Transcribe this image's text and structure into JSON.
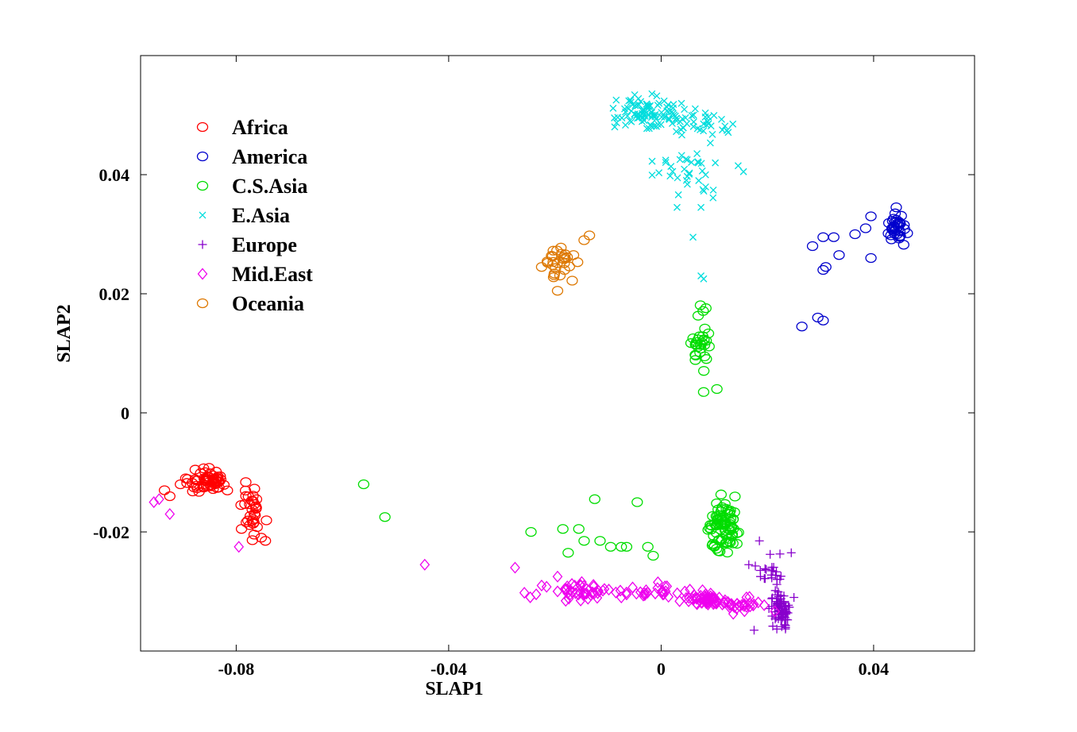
{
  "chart_data": {
    "type": "scatter",
    "title": "",
    "xlabel": "SLAP1",
    "ylabel": "SLAP2",
    "xlim": [
      -0.098,
      0.059
    ],
    "ylim": [
      -0.04,
      0.06
    ],
    "xticks": [
      {
        "value": -0.08,
        "label": "-0.08"
      },
      {
        "value": -0.04,
        "label": "-0.04"
      },
      {
        "value": 0,
        "label": "0"
      },
      {
        "value": 0.04,
        "label": "0.04"
      }
    ],
    "yticks": [
      {
        "value": -0.02,
        "label": "-0.02"
      },
      {
        "value": 0,
        "label": "0"
      },
      {
        "value": 0.02,
        "label": "0.02"
      },
      {
        "value": 0.04,
        "label": "0.04"
      }
    ],
    "grid": false,
    "legend_position": "top-left",
    "series": [
      {
        "name": "Africa",
        "marker": "circle",
        "color": "#ff0000",
        "clusters": [
          {
            "cx": -0.0855,
            "cy": -0.0115,
            "sx": 0.0025,
            "sy": 0.0012,
            "n": 60
          },
          {
            "cx": -0.077,
            "cy": -0.016,
            "sx": 0.0013,
            "sy": 0.0028,
            "n": 32
          }
        ],
        "points": [
          [
            -0.0935,
            -0.013
          ],
          [
            -0.0925,
            -0.014
          ],
          [
            -0.0905,
            -0.012
          ],
          [
            -0.0895,
            -0.011
          ],
          [
            -0.0745,
            -0.0215
          ],
          [
            -0.079,
            -0.0195
          ]
        ]
      },
      {
        "name": "America",
        "marker": "circle",
        "color": "#0000cc",
        "clusters": [
          {
            "cx": 0.0445,
            "cy": 0.031,
            "sx": 0.0012,
            "sy": 0.0017,
            "n": 35
          }
        ],
        "points": [
          [
            0.0395,
            0.026
          ],
          [
            0.0365,
            0.03
          ],
          [
            0.0385,
            0.031
          ],
          [
            0.0395,
            0.033
          ],
          [
            0.0285,
            0.028
          ],
          [
            0.0305,
            0.0295
          ],
          [
            0.0325,
            0.0295
          ],
          [
            0.0335,
            0.0265
          ],
          [
            0.0305,
            0.024
          ],
          [
            0.031,
            0.0245
          ],
          [
            0.0265,
            0.0145
          ],
          [
            0.0295,
            0.016
          ],
          [
            0.0305,
            0.0155
          ]
        ]
      },
      {
        "name": "C.S.Asia",
        "marker": "circle",
        "color": "#00dd00",
        "clusters": [
          {
            "cx": 0.0075,
            "cy": 0.012,
            "sx": 0.0012,
            "sy": 0.0035,
            "n": 32
          },
          {
            "cx": 0.0115,
            "cy": -0.0195,
            "sx": 0.002,
            "sy": 0.003,
            "n": 85
          }
        ],
        "points": [
          [
            -0.056,
            -0.012
          ],
          [
            -0.052,
            -0.0175
          ],
          [
            -0.0245,
            -0.02
          ],
          [
            -0.0185,
            -0.0195
          ],
          [
            -0.0155,
            -0.0195
          ],
          [
            -0.0175,
            -0.0235
          ],
          [
            -0.0145,
            -0.0215
          ],
          [
            -0.0125,
            -0.0145
          ],
          [
            -0.0115,
            -0.0215
          ],
          [
            -0.0095,
            -0.0225
          ],
          [
            -0.0075,
            -0.0225
          ],
          [
            -0.0045,
            -0.015
          ],
          [
            -0.0065,
            -0.0225
          ],
          [
            -0.0025,
            -0.0225
          ],
          [
            -0.0015,
            -0.024
          ],
          [
            0.008,
            0.0035
          ],
          [
            0.0105,
            0.004
          ]
        ]
      },
      {
        "name": "E.Asia",
        "marker": "x",
        "color": "#00dddd",
        "clusters": [
          {
            "cx": -0.0025,
            "cy": 0.0505,
            "sx": 0.0045,
            "sy": 0.0017,
            "n": 100
          },
          {
            "cx": 0.008,
            "cy": 0.049,
            "sx": 0.004,
            "sy": 0.0017,
            "n": 30
          },
          {
            "cx": 0.004,
            "cy": 0.0405,
            "sx": 0.005,
            "sy": 0.0025,
            "n": 35
          }
        ],
        "points": [
          [
            0.003,
            0.0345
          ],
          [
            0.0075,
            0.0345
          ],
          [
            0.006,
            0.0295
          ],
          [
            0.0075,
            0.023
          ],
          [
            0.008,
            0.0225
          ],
          [
            0.0145,
            0.0415
          ],
          [
            0.0155,
            0.0405
          ],
          [
            0.0135,
            0.0485
          ]
        ]
      },
      {
        "name": "Europe",
        "marker": "plus",
        "color": "#8800cc",
        "clusters": [
          {
            "cx": 0.0225,
            "cy": -0.033,
            "sx": 0.0013,
            "sy": 0.0018,
            "n": 75
          },
          {
            "cx": 0.0205,
            "cy": -0.0265,
            "sx": 0.0017,
            "sy": 0.002,
            "n": 22
          }
        ],
        "points": [
          [
            0.0175,
            -0.0365
          ],
          [
            0.0185,
            -0.0215
          ],
          [
            0.0245,
            -0.0235
          ],
          [
            0.0165,
            -0.0255
          ],
          [
            0.025,
            -0.031
          ]
        ]
      },
      {
        "name": "Mid.East",
        "marker": "diamond",
        "color": "#ee00ee",
        "clusters": [
          {
            "cx": -0.0145,
            "cy": -0.03,
            "sx": 0.0055,
            "sy": 0.0009,
            "n": 45
          },
          {
            "cx": 0.0005,
            "cy": -0.0298,
            "sx": 0.0035,
            "sy": 0.0009,
            "n": 25
          },
          {
            "cx": 0.0085,
            "cy": -0.0315,
            "sx": 0.0025,
            "sy": 0.0008,
            "n": 55
          },
          {
            "cx": 0.0155,
            "cy": -0.0325,
            "sx": 0.0025,
            "sy": 0.0008,
            "n": 30
          }
        ],
        "points": [
          [
            -0.0955,
            -0.015
          ],
          [
            -0.0945,
            -0.0145
          ],
          [
            -0.0925,
            -0.017
          ],
          [
            -0.0795,
            -0.0225
          ],
          [
            -0.0445,
            -0.0255
          ],
          [
            -0.0275,
            -0.026
          ],
          [
            -0.0225,
            -0.029
          ],
          [
            -0.0195,
            -0.0275
          ],
          [
            -0.0065,
            -0.0305
          ],
          [
            -0.0075,
            -0.031
          ]
        ]
      },
      {
        "name": "Oceania",
        "marker": "circle",
        "color": "#dd7700",
        "clusters": [
          {
            "cx": -0.0195,
            "cy": 0.025,
            "sx": 0.0025,
            "sy": 0.0025,
            "n": 26
          }
        ],
        "points": [
          [
            -0.0135,
            0.0298
          ],
          [
            -0.0145,
            0.029
          ],
          [
            -0.0165,
            0.0265
          ],
          [
            -0.0225,
            0.0245
          ],
          [
            -0.0195,
            0.0205
          ]
        ]
      }
    ]
  }
}
